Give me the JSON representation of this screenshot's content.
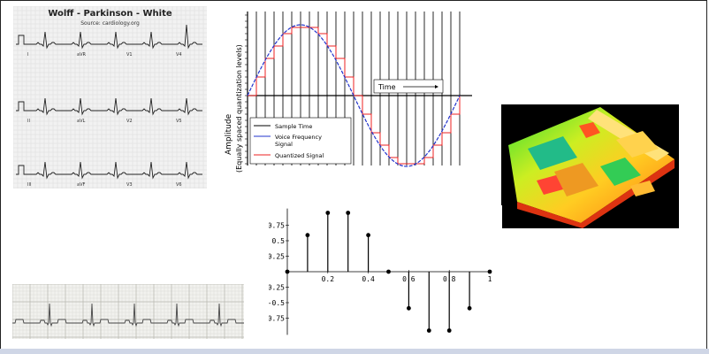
{
  "ecg_panel": {
    "title": "Wolff - Parkinson - White",
    "source": "Source: cardiology.org",
    "leads": [
      "I",
      "aVR",
      "V1",
      "V4",
      "II",
      "aVL",
      "V2",
      "V5",
      "III",
      "aVF",
      "V3",
      "V6"
    ]
  },
  "quantization_panel": {
    "ylabel": "Amplitude",
    "ylabel2": "(Equally spaced quantization levels)",
    "time_label": "Time",
    "legend": [
      "Sample Time",
      "Voice Frequency Signal",
      "Quantized Signal"
    ],
    "colors": {
      "sample": "#000000",
      "signal": "#2233cc",
      "quantized": "#ee2222"
    }
  },
  "chart_data": {
    "type": "scatter",
    "style": "stem",
    "x": [
      0,
      0.1,
      0.2,
      0.3,
      0.4,
      0.5,
      0.6,
      0.7,
      0.8,
      0.9,
      1.0
    ],
    "y": [
      0,
      0.59,
      0.95,
      0.95,
      0.59,
      0,
      -0.59,
      -0.95,
      -0.95,
      -0.59,
      0
    ],
    "x_ticks": [
      "0.2",
      "0.4",
      "0.6",
      "0.8",
      "1"
    ],
    "y_ticks": [
      "0.75",
      "0.5",
      "0.25",
      "-0.25",
      "-0.5",
      "-0.75"
    ],
    "xlim": [
      0,
      1
    ],
    "ylim": [
      -1,
      1
    ]
  }
}
